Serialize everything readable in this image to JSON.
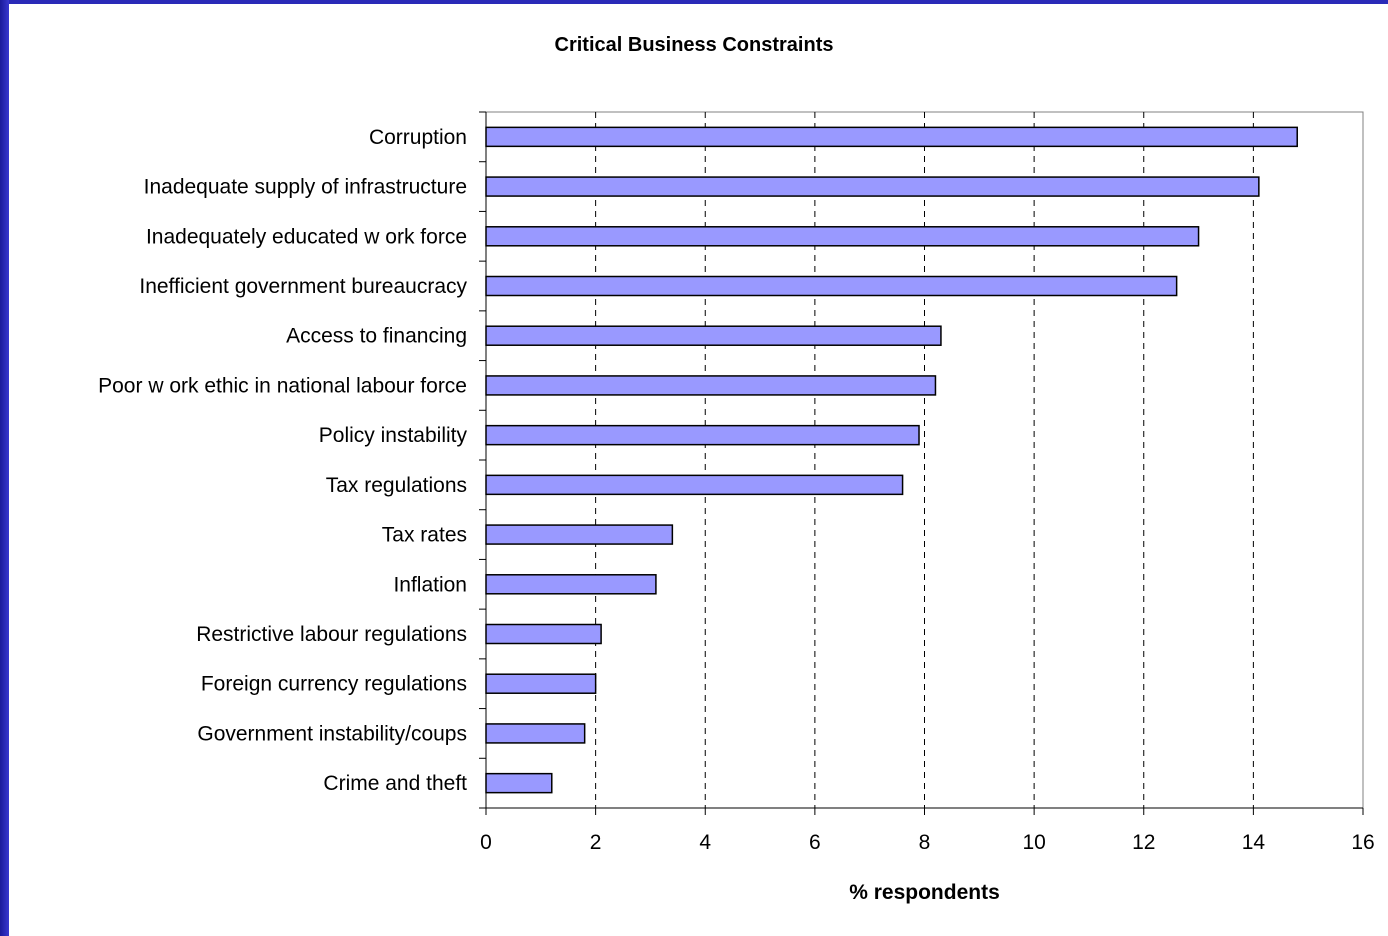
{
  "chart_data": {
    "type": "bar",
    "orientation": "horizontal",
    "title": "Critical Business Constraints",
    "xlabel": "% respondents",
    "ylabel": "",
    "xlim": [
      0,
      16
    ],
    "x_ticks": [
      0,
      2,
      4,
      6,
      8,
      10,
      12,
      14,
      16
    ],
    "grid": "vertical dashed",
    "bar_color": "#9999ff",
    "bar_edge_color": "#000000",
    "categories": [
      "Corruption",
      "Inadequate supply of infrastructure",
      "Inadequately educated w ork force",
      "Inefficient government bureaucracy",
      "Access to financing",
      "Poor w ork ethic in national labour force",
      "Policy instability",
      "Tax regulations",
      "Tax rates",
      "Inflation",
      "Restrictive labour regulations",
      "Foreign currency regulations",
      "Government instability/coups",
      "Crime and theft"
    ],
    "values": [
      14.8,
      14.1,
      13.0,
      12.6,
      8.3,
      8.2,
      7.9,
      7.6,
      3.4,
      3.1,
      2.1,
      2.0,
      1.8,
      1.2
    ]
  },
  "colors": {
    "frame": "#2a2ab8",
    "bar": "#9999ff"
  }
}
